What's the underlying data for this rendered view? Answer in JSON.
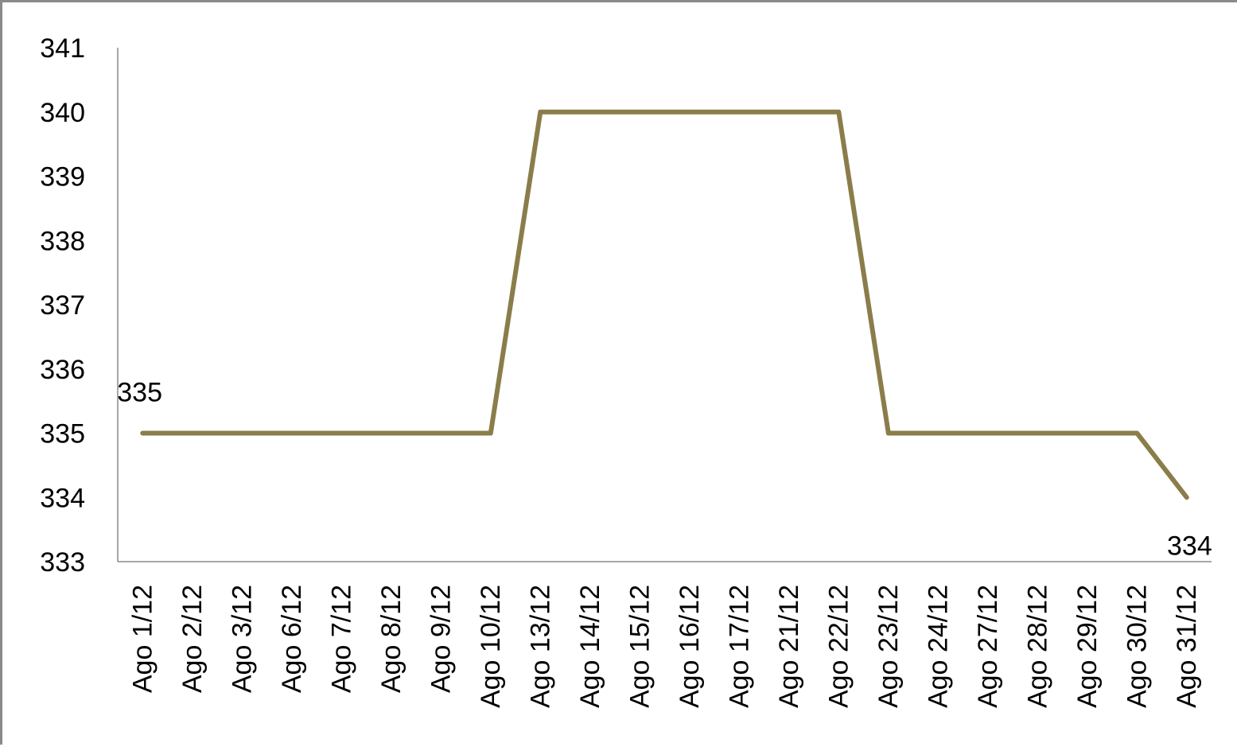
{
  "chart_data": {
    "type": "line",
    "x": [
      "Ago 1/12",
      "Ago 2/12",
      "Ago 3/12",
      "Ago 6/12",
      "Ago 7/12",
      "Ago 8/12",
      "Ago 9/12",
      "Ago 10/12",
      "Ago 13/12",
      "Ago 14/12",
      "Ago 15/12",
      "Ago 16/12",
      "Ago 17/12",
      "Ago 21/12",
      "Ago 22/12",
      "Ago 23/12",
      "Ago 24/12",
      "Ago 27/12",
      "Ago 28/12",
      "Ago 29/12",
      "Ago 30/12",
      "Ago 31/12"
    ],
    "series": [
      {
        "values": [
          335,
          335,
          335,
          335,
          335,
          335,
          335,
          335,
          340,
          340,
          340,
          340,
          340,
          340,
          340,
          335,
          335,
          335,
          335,
          335,
          335,
          334
        ],
        "color": "#8b7d4a"
      }
    ],
    "data_labels": [
      {
        "index": 0,
        "text": "335"
      },
      {
        "index": 21,
        "text": "334"
      }
    ],
    "title": "",
    "xlabel": "",
    "ylabel": "",
    "ylim": [
      333,
      341
    ],
    "yticks": [
      "333",
      "334",
      "335",
      "336",
      "337",
      "338",
      "339",
      "340",
      "341"
    ],
    "grid": false,
    "legend": "none"
  }
}
